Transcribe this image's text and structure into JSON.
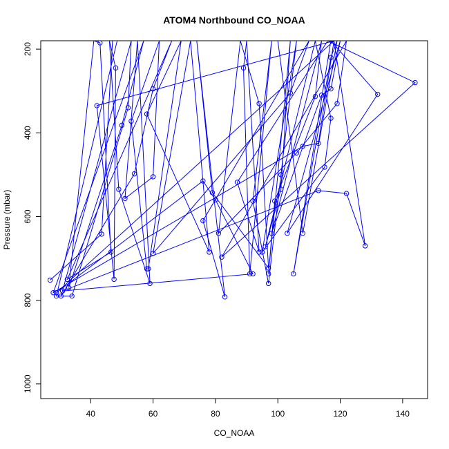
{
  "chart_data": {
    "type": "line",
    "title": "ATOM4 Northbound CO_NOAA",
    "xlabel": "CO_NOAA",
    "ylabel": "Pressure (mbar)",
    "xlim": [
      24,
      148
    ],
    "ylim": [
      1035,
      180
    ],
    "y_reversed": true,
    "grid": false,
    "x_ticks": [
      40,
      60,
      80,
      100,
      120,
      140
    ],
    "y_ticks": [
      200,
      400,
      600,
      800,
      1000
    ],
    "series": [
      {
        "color": "#0000ff",
        "points": [
          {
            "x": 27,
            "y": 752
          },
          {
            "x": 43.5,
            "y": 642
          },
          {
            "x": 47,
            "y": 180
          },
          {
            "x": 48.5,
            "y": 180
          },
          {
            "x": 29,
            "y": 790
          },
          {
            "x": 34,
            "y": 790
          },
          {
            "x": 52,
            "y": 340
          },
          {
            "x": 53,
            "y": 180
          },
          {
            "x": 30.5,
            "y": 790
          },
          {
            "x": 54,
            "y": 498
          },
          {
            "x": 60,
            "y": 295
          },
          {
            "x": 66,
            "y": 180
          },
          {
            "x": 32.5,
            "y": 750
          },
          {
            "x": 46.5,
            "y": 685
          },
          {
            "x": 43,
            "y": 185
          },
          {
            "x": 41,
            "y": 180
          },
          {
            "x": 33,
            "y": 770
          },
          {
            "x": 50,
            "y": 382
          },
          {
            "x": 57,
            "y": 180
          },
          {
            "x": 28,
            "y": 782
          },
          {
            "x": 108,
            "y": 432
          },
          {
            "x": 113,
            "y": 425
          },
          {
            "x": 118,
            "y": 180
          },
          {
            "x": 29,
            "y": 782
          },
          {
            "x": 76,
            "y": 515
          },
          {
            "x": 80,
            "y": 560
          },
          {
            "x": 92,
            "y": 737
          },
          {
            "x": 31,
            "y": 778
          },
          {
            "x": 113,
            "y": 538
          },
          {
            "x": 122,
            "y": 545
          },
          {
            "x": 128,
            "y": 670
          },
          {
            "x": 118,
            "y": 180
          },
          {
            "x": 42,
            "y": 335
          },
          {
            "x": 47.5,
            "y": 750
          },
          {
            "x": 48,
            "y": 245
          },
          {
            "x": 46,
            "y": 180
          },
          {
            "x": 49,
            "y": 535
          },
          {
            "x": 59,
            "y": 760
          },
          {
            "x": 55,
            "y": 180
          },
          {
            "x": 51,
            "y": 557
          },
          {
            "x": 60,
            "y": 505
          },
          {
            "x": 62,
            "y": 180
          },
          {
            "x": 53,
            "y": 372
          },
          {
            "x": 58,
            "y": 725
          },
          {
            "x": 58.5,
            "y": 725
          },
          {
            "x": 69,
            "y": 180
          },
          {
            "x": 58,
            "y": 355
          },
          {
            "x": 78,
            "y": 685
          },
          {
            "x": 72,
            "y": 180
          },
          {
            "x": 60,
            "y": 688
          },
          {
            "x": 104,
            "y": 305
          },
          {
            "x": 110,
            "y": 180
          },
          {
            "x": 76,
            "y": 610
          },
          {
            "x": 83,
            "y": 792
          },
          {
            "x": 74,
            "y": 180
          },
          {
            "x": 79,
            "y": 543
          },
          {
            "x": 97,
            "y": 723
          },
          {
            "x": 94,
            "y": 330
          },
          {
            "x": 88,
            "y": 180
          },
          {
            "x": 81,
            "y": 640
          },
          {
            "x": 106,
            "y": 448
          },
          {
            "x": 119,
            "y": 330
          },
          {
            "x": 122,
            "y": 180
          },
          {
            "x": 82,
            "y": 697
          },
          {
            "x": 144,
            "y": 280
          },
          {
            "x": 116,
            "y": 180
          },
          {
            "x": 87,
            "y": 518
          },
          {
            "x": 94,
            "y": 685
          },
          {
            "x": 90,
            "y": 180
          },
          {
            "x": 89,
            "y": 245
          },
          {
            "x": 91,
            "y": 737
          },
          {
            "x": 98,
            "y": 180
          },
          {
            "x": 92,
            "y": 563
          },
          {
            "x": 97,
            "y": 760
          },
          {
            "x": 101,
            "y": 500
          },
          {
            "x": 106,
            "y": 180
          },
          {
            "x": 95,
            "y": 685
          },
          {
            "x": 115,
            "y": 482
          },
          {
            "x": 117,
            "y": 365
          },
          {
            "x": 112,
            "y": 180
          },
          {
            "x": 96,
            "y": 672
          },
          {
            "x": 101,
            "y": 535
          },
          {
            "x": 104,
            "y": 180
          },
          {
            "x": 97,
            "y": 737
          },
          {
            "x": 99,
            "y": 563
          },
          {
            "x": 112,
            "y": 313
          },
          {
            "x": 114,
            "y": 180
          },
          {
            "x": 98,
            "y": 640
          },
          {
            "x": 114,
            "y": 310
          },
          {
            "x": 117,
            "y": 295
          },
          {
            "x": 120,
            "y": 180
          },
          {
            "x": 103,
            "y": 640
          },
          {
            "x": 132,
            "y": 308
          },
          {
            "x": 117,
            "y": 180
          },
          {
            "x": 105,
            "y": 737
          },
          {
            "x": 117,
            "y": 220
          },
          {
            "x": 119,
            "y": 180
          },
          {
            "x": 108,
            "y": 640
          },
          {
            "x": 100,
            "y": 180
          }
        ]
      }
    ]
  }
}
